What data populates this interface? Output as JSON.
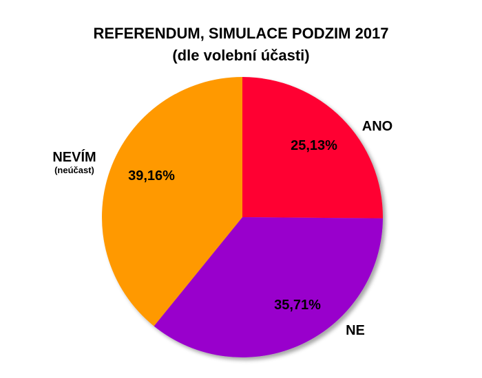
{
  "chart_data": {
    "type": "pie",
    "title": "REFERENDUM, SIMULACE PODZIM 2017",
    "subtitle": "(dle volební účasti)",
    "legend": "none",
    "slices": [
      {
        "label": "ANO",
        "sublabel": "",
        "value": 25.13,
        "value_label": "25,13%",
        "color": "#ff0033"
      },
      {
        "label": "NE",
        "sublabel": "",
        "value": 35.71,
        "value_label": "35,71%",
        "color": "#9900cc"
      },
      {
        "label": "NEVÍM",
        "sublabel": "(neúčast)",
        "value": 39.16,
        "value_label": "39,16%",
        "color": "#ff9900"
      }
    ]
  }
}
